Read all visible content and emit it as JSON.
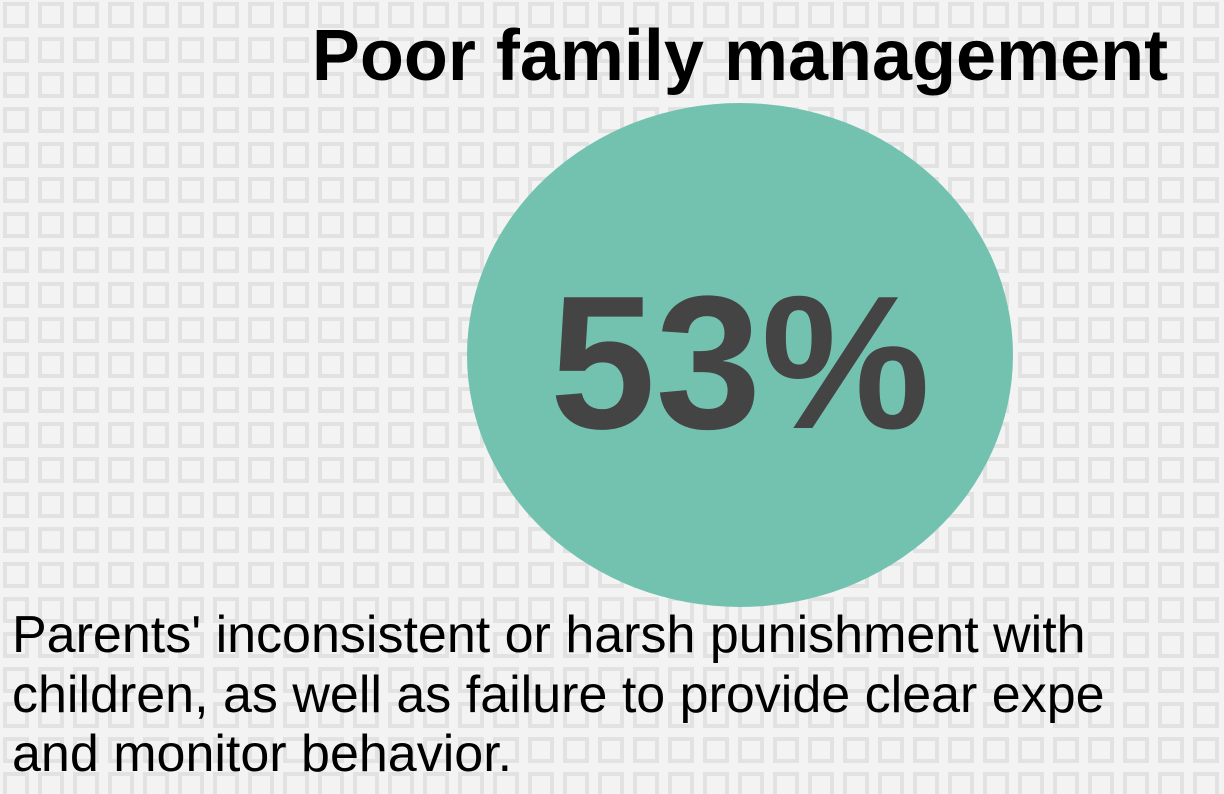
{
  "title": "Poor family management",
  "statistic": "53%",
  "description": [
    "Parents' inconsistent or harsh punishment with",
    "children, as well as failure to provide clear expe",
    "and monitor behavior."
  ]
}
